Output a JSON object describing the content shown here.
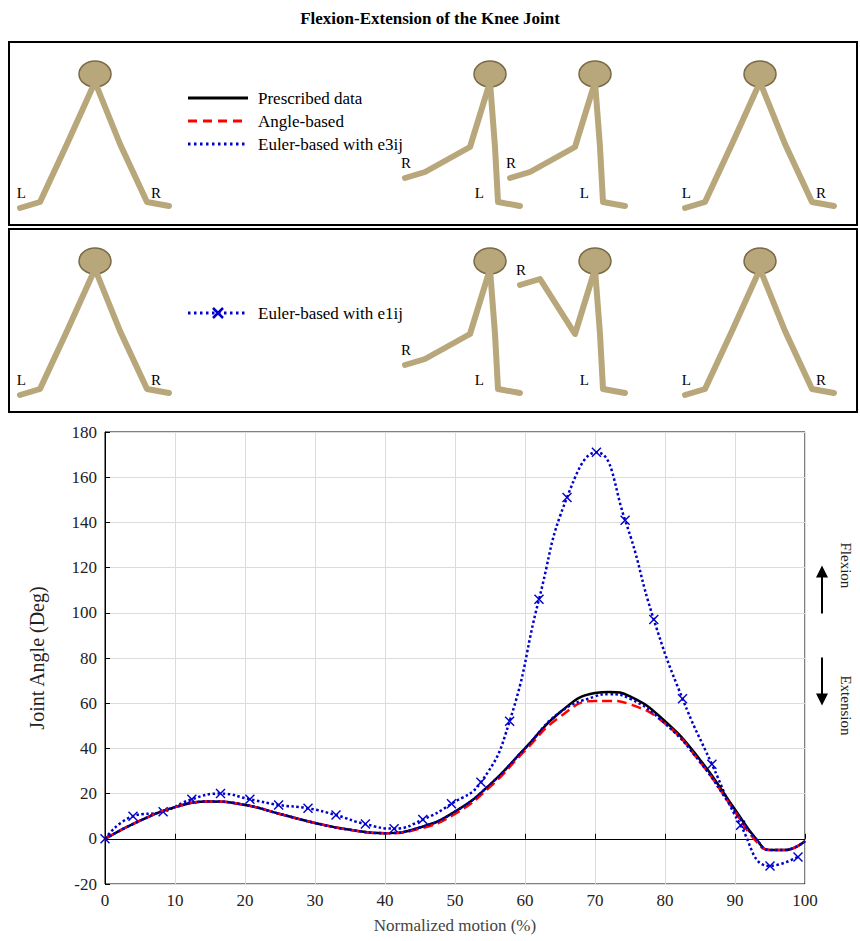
{
  "title": "Flexion-Extension of the Knee Joint",
  "panels": [
    {
      "legend": [
        "Prescribed data",
        "Angle-based",
        "Euler-based with e3ij"
      ],
      "poses": [
        [
          "L",
          "R"
        ],
        [
          "R",
          "L"
        ],
        [
          "R",
          "L"
        ],
        [
          "L",
          "R"
        ]
      ]
    },
    {
      "legend": [
        "Euler-based with e1ij"
      ],
      "poses": [
        [
          "L",
          "R"
        ],
        [
          "R",
          "L"
        ],
        [
          "R",
          "L"
        ],
        [
          "L",
          "R"
        ]
      ]
    }
  ],
  "chart_data": {
    "type": "line",
    "x_label": "Normalized motion (%)",
    "y_label": "Joint Angle (Deg)",
    "annotations": [
      "Flexion",
      "Extension"
    ],
    "xlim": [
      0,
      100
    ],
    "ylim": [
      -20,
      180
    ],
    "xticks": [
      0,
      10,
      20,
      30,
      40,
      50,
      60,
      70,
      80,
      90,
      100
    ],
    "yticks": [
      -20,
      0,
      20,
      40,
      60,
      80,
      100,
      120,
      140,
      160,
      180
    ],
    "grid": true,
    "series": [
      {
        "name": "Prescribed data",
        "color": "#000000",
        "line_style": "solid",
        "marker": "none",
        "x": [
          0,
          5,
          10,
          15,
          20,
          25,
          30,
          35,
          40,
          45,
          50,
          55,
          60,
          65,
          70,
          72,
          75,
          80,
          85,
          90,
          93,
          95,
          97,
          100
        ],
        "values": [
          0,
          8,
          14,
          16.5,
          15,
          11,
          7,
          4,
          2.5,
          5,
          12,
          24,
          40,
          56,
          64.5,
          65,
          63,
          52,
          35,
          13,
          0,
          -5,
          -5,
          -1
        ]
      },
      {
        "name": "Angle-based",
        "color": "#ff0000",
        "line_style": "dashed",
        "marker": "none",
        "x": [
          0,
          5,
          10,
          15,
          20,
          25,
          30,
          35,
          40,
          45,
          50,
          55,
          60,
          65,
          70,
          72,
          75,
          80,
          85,
          90,
          93,
          95,
          97,
          100
        ],
        "values": [
          0,
          8,
          14,
          16.5,
          15,
          11,
          7,
          4,
          2.5,
          4.5,
          11,
          23,
          39,
          54,
          61,
          61,
          59.5,
          51,
          34,
          12,
          -1,
          -5,
          -5,
          -1
        ]
      },
      {
        "name": "Euler-based with e3ij",
        "color": "#0000cc",
        "line_style": "dotted",
        "marker": "none",
        "x": [
          0,
          5,
          10,
          15,
          20,
          25,
          30,
          35,
          40,
          45,
          50,
          55,
          60,
          65,
          70,
          72,
          75,
          80,
          85,
          90,
          93,
          95,
          97,
          100
        ],
        "values": [
          0,
          8,
          14,
          16.5,
          15,
          11,
          7,
          4,
          2.5,
          5,
          12,
          24,
          40,
          56,
          63,
          64,
          62,
          51,
          34,
          12,
          0,
          -5,
          -5,
          -1
        ]
      },
      {
        "name": "Euler-based with e1ij",
        "color": "#0000cc",
        "line_style": "dotted",
        "marker": "x",
        "x": [
          0,
          4,
          8.3,
          12.4,
          16.5,
          20.7,
          24.8,
          29,
          33,
          37.2,
          41.3,
          45.4,
          49.5,
          53.7,
          57.8,
          62,
          66,
          70.2,
          74.3,
          78.4,
          82.5,
          86.7,
          90.8,
          95,
          99
        ],
        "values": [
          0,
          10,
          12,
          17.5,
          20,
          17.5,
          15,
          13.5,
          10.5,
          6.5,
          4.5,
          8.5,
          15.5,
          25,
          52,
          106,
          151,
          171,
          141,
          97,
          62,
          33,
          6,
          -12,
          -8
        ]
      }
    ]
  }
}
